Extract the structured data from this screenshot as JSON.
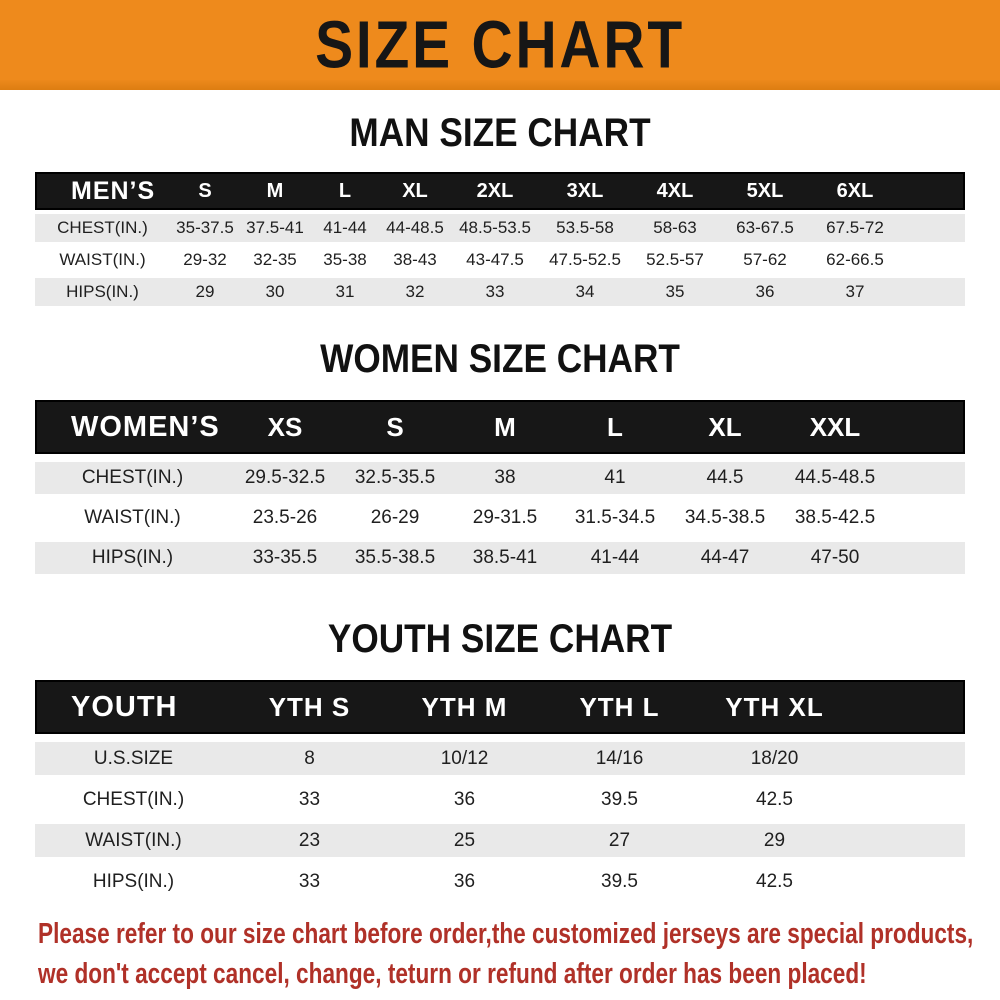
{
  "banner": {
    "title": "SIZE CHART"
  },
  "theme": {
    "banner-bg": "#EE8A1C",
    "banner-text": "#161616",
    "band-bg": "#171717",
    "band-text": "#FFFFFF",
    "stripe-bg": "#E9E9E9",
    "row-text": "#1F1F1F",
    "title-color": "#111111",
    "disclaimer-color": "#B03128"
  },
  "sections": [
    {
      "title": "MAN SIZE CHART",
      "header_label": "MEN’S",
      "columns": [
        "S",
        "M",
        "L",
        "XL",
        "2XL",
        "3XL",
        "4XL",
        "5XL",
        "6XL"
      ],
      "rows": [
        {
          "label": "CHEST(IN.)",
          "values": [
            "35-37.5",
            "37.5-41",
            "41-44",
            "44-48.5",
            "48.5-53.5",
            "53.5-58",
            "58-63",
            "63-67.5",
            "67.5-72"
          ]
        },
        {
          "label": "WAIST(IN.)",
          "values": [
            "29-32",
            "32-35",
            "35-38",
            "38-43",
            "43-47.5",
            "47.5-52.5",
            "52.5-57",
            "57-62",
            "62-66.5"
          ]
        },
        {
          "label": "HIPS(IN.)",
          "values": [
            "29",
            "30",
            "31",
            "32",
            "33",
            "34",
            "35",
            "36",
            "37"
          ]
        }
      ]
    },
    {
      "title": "WOMEN SIZE CHART",
      "header_label": "WOMEN’S",
      "columns": [
        "XS",
        "S",
        "M",
        "L",
        "XL",
        "XXL"
      ],
      "rows": [
        {
          "label": "CHEST(IN.)",
          "values": [
            "29.5-32.5",
            "32.5-35.5",
            "38",
            "41",
            "44.5",
            "44.5-48.5"
          ]
        },
        {
          "label": "WAIST(IN.)",
          "values": [
            "23.5-26",
            "26-29",
            "29-31.5",
            "31.5-34.5",
            "34.5-38.5",
            "38.5-42.5"
          ]
        },
        {
          "label": "HIPS(IN.)",
          "values": [
            "33-35.5",
            "35.5-38.5",
            "38.5-41",
            "41-44",
            "44-47",
            "47-50"
          ]
        }
      ]
    },
    {
      "title": "YOUTH SIZE CHART",
      "header_label": "YOUTH",
      "columns": [
        "YTH S",
        "YTH M",
        "YTH L",
        "YTH XL"
      ],
      "rows": [
        {
          "label": "U.S.SIZE",
          "values": [
            "8",
            "10/12",
            "14/16",
            "18/20"
          ]
        },
        {
          "label": "CHEST(IN.)",
          "values": [
            "33",
            "36",
            "39.5",
            "42.5"
          ]
        },
        {
          "label": "WAIST(IN.)",
          "values": [
            "23",
            "25",
            "27",
            "29"
          ]
        },
        {
          "label": "HIPS(IN.)",
          "values": [
            "33",
            "36",
            "39.5",
            "42.5"
          ]
        }
      ]
    }
  ],
  "disclaimer": {
    "line1": "Please refer to our size chart before order,the customized jerseys are special products,",
    "line2": "we don't accept cancel, change, teturn or refund after order has been placed!"
  }
}
